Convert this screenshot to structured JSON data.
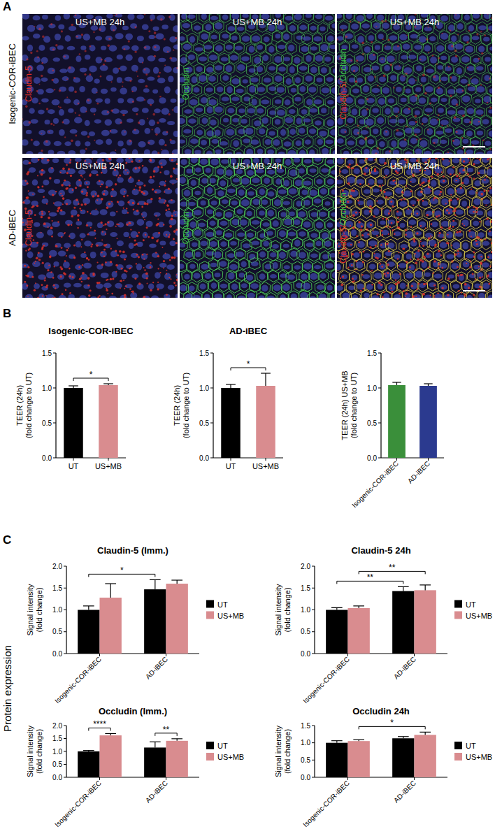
{
  "figure": {
    "panel_labels": [
      "A",
      "B",
      "C"
    ],
    "row_labels": [
      "Isogenic-COR-iBEC",
      "AD-iBEC"
    ],
    "images": [
      [
        {
          "title": "US+MB 24h",
          "stains": [
            {
              "text": "Claudin-5",
              "color": "#e0302a"
            }
          ]
        },
        {
          "title": "US+MB 24h",
          "stains": [
            {
              "text": "Occludin",
              "color": "#3cc24a"
            }
          ]
        },
        {
          "title": "US+MB 24h",
          "stains": [
            {
              "text": "Claudin-5/",
              "color": "#e0302a"
            },
            {
              "text": "Occludin",
              "color": "#3cc24a"
            }
          ]
        }
      ],
      [
        {
          "title": "US+MB 24h",
          "stains": [
            {
              "text": "Claudin-5",
              "color": "#e0302a"
            }
          ]
        },
        {
          "title": "US+MB 24h",
          "stains": [
            {
              "text": "Occludin",
              "color": "#3cc24a"
            }
          ]
        },
        {
          "title": "US+MB 24h",
          "stains": [
            {
              "text": "Claudin-5/",
              "color": "#e0302a"
            },
            {
              "text": "Occludin",
              "color": "#3cc24a"
            }
          ]
        }
      ]
    ],
    "side_label": "Protein expression"
  },
  "chart_data": [
    {
      "type": "bar",
      "title": "Isogenic-COR-iBEC",
      "ylabel": "TEER (24h)\n(fold change to UT)",
      "categories": [
        "UT",
        "US+MB"
      ],
      "values": [
        1.0,
        1.04
      ],
      "errors": [
        0.03,
        0.02
      ],
      "colors": [
        "#000000",
        "#d98c8f"
      ],
      "ylim": [
        0,
        1.5
      ],
      "yticks": [
        {
          "value": 0,
          "label": "0.0"
        },
        {
          "value": 0.5,
          "label": "0.5"
        },
        {
          "value": 1,
          "label": "1.0"
        },
        {
          "value": 1.5,
          "label": "1.5"
        }
      ],
      "annotations": [
        {
          "text": "*",
          "from": 0,
          "to": 1
        }
      ]
    },
    {
      "type": "bar",
      "title": "AD-iBEC",
      "ylabel": "TEER (24h)\n(fold change to UT)",
      "categories": [
        "UT",
        "US+MB"
      ],
      "values": [
        1.0,
        1.03
      ],
      "errors": [
        0.05,
        0.18
      ],
      "colors": [
        "#000000",
        "#d98c8f"
      ],
      "ylim": [
        0,
        1.5
      ],
      "yticks": [
        {
          "value": 0,
          "label": "0.0"
        },
        {
          "value": 0.5,
          "label": "0.5"
        },
        {
          "value": 1,
          "label": "1.0"
        },
        {
          "value": 1.5,
          "label": "1.5"
        }
      ],
      "annotations": [
        {
          "text": "*",
          "from": 0,
          "to": 1
        }
      ]
    },
    {
      "type": "bar",
      "ylabel": "TEER (24h) US+MB\n(fold change to UT)",
      "categories": [
        "Isogenic-COR-iBEC",
        "AD-iBEC"
      ],
      "values": [
        1.04,
        1.03
      ],
      "errors": [
        0.04,
        0.03
      ],
      "colors": [
        "#3a8f3a",
        "#2b3a8f"
      ],
      "ylim": [
        0,
        1.5
      ],
      "yticks": [
        {
          "value": 0,
          "label": "0.0"
        },
        {
          "value": 0.5,
          "label": "0.5"
        },
        {
          "value": 1,
          "label": "1.0"
        },
        {
          "value": 1.5,
          "label": "1.5"
        }
      ]
    },
    {
      "type": "bar",
      "title": "Claudin-5 (Imm.)",
      "ylabel": "Signal intensity\n(fold change)",
      "categories": [
        "Isogenic-COR-iBEC",
        "AD-iBEC"
      ],
      "series": [
        {
          "name": "UT",
          "color": "#000000",
          "values": [
            1.0,
            1.47
          ],
          "errors": [
            0.09,
            0.22
          ]
        },
        {
          "name": "US+MB",
          "color": "#d98c8f",
          "values": [
            1.28,
            1.6
          ],
          "errors": [
            0.32,
            0.08
          ]
        }
      ],
      "legend": "right",
      "ylim": [
        0,
        2
      ],
      "yticks": [
        {
          "value": 0,
          "label": "0.0"
        },
        {
          "value": 0.5,
          "label": "0.5"
        },
        {
          "value": 1,
          "label": "1.0"
        },
        {
          "value": 1.5,
          "label": "1.5"
        },
        {
          "value": 2,
          "label": "2.0"
        }
      ],
      "annotations": [
        {
          "text": "*",
          "from": [
            0,
            0
          ],
          "to": [
            1,
            0
          ]
        }
      ]
    },
    {
      "type": "bar",
      "title": "Claudin-5 24h",
      "ylabel": "Signal intensity\n(fold change)",
      "categories": [
        "Isogenic-COR-iBEC",
        "AD-iBEC"
      ],
      "series": [
        {
          "name": "UT",
          "color": "#000000",
          "values": [
            1.0,
            1.43
          ],
          "errors": [
            0.05,
            0.1
          ]
        },
        {
          "name": "US+MB",
          "color": "#d98c8f",
          "values": [
            1.04,
            1.45
          ],
          "errors": [
            0.05,
            0.12
          ]
        }
      ],
      "legend": "right",
      "ylim": [
        0,
        2
      ],
      "yticks": [
        {
          "value": 0,
          "label": "0.0"
        },
        {
          "value": 0.5,
          "label": "0.5"
        },
        {
          "value": 1,
          "label": "1.0"
        },
        {
          "value": 1.5,
          "label": "1.5"
        },
        {
          "value": 2,
          "label": "2.0"
        }
      ],
      "annotations": [
        {
          "text": "**",
          "from": [
            0,
            0
          ],
          "to": [
            1,
            0
          ]
        },
        {
          "text": "**",
          "from": [
            0,
            1
          ],
          "to": [
            1,
            1
          ]
        }
      ]
    },
    {
      "type": "bar",
      "title": "Occludin (Imm.)",
      "ylabel": "Signal intensity\n(fold change)",
      "categories": [
        "Isogenic-COR-iBEC",
        "AD-iBEC"
      ],
      "series": [
        {
          "name": "UT",
          "color": "#000000",
          "values": [
            1.0,
            1.15
          ],
          "errors": [
            0.04,
            0.22
          ]
        },
        {
          "name": "US+MB",
          "color": "#d98c8f",
          "values": [
            1.62,
            1.41
          ],
          "errors": [
            0.07,
            0.08
          ]
        }
      ],
      "legend": "right",
      "ylim": [
        0,
        2
      ],
      "yticks": [
        {
          "value": 0,
          "label": "0.0"
        },
        {
          "value": 0.5,
          "label": "0.5"
        },
        {
          "value": 1,
          "label": "1.0"
        },
        {
          "value": 1.5,
          "label": "1.5"
        },
        {
          "value": 2,
          "label": "2.0"
        }
      ],
      "annotations": [
        {
          "text": "****",
          "from": [
            0,
            0
          ],
          "to": [
            0,
            1
          ]
        },
        {
          "text": "**",
          "from": [
            1,
            0
          ],
          "to": [
            1,
            1
          ]
        }
      ]
    },
    {
      "type": "bar",
      "title": "Occludin 24h",
      "ylabel": "Signal intensity\n(fold change)",
      "categories": [
        "Isogenic-COR-iBEC",
        "AD-iBEC"
      ],
      "series": [
        {
          "name": "UT",
          "color": "#000000",
          "values": [
            1.0,
            1.13
          ],
          "errors": [
            0.06,
            0.05
          ]
        },
        {
          "name": "US+MB",
          "color": "#d98c8f",
          "values": [
            1.05,
            1.23
          ],
          "errors": [
            0.04,
            0.08
          ]
        }
      ],
      "legend": "right",
      "ylim": [
        0,
        1.5
      ],
      "yticks": [
        {
          "value": 0,
          "label": "0.0"
        },
        {
          "value": 0.5,
          "label": "0.5"
        },
        {
          "value": 1,
          "label": "1.0"
        },
        {
          "value": 1.5,
          "label": "1.5"
        }
      ],
      "annotations": [
        {
          "text": "*",
          "from": [
            0,
            1
          ],
          "to": [
            1,
            1
          ]
        }
      ]
    }
  ]
}
